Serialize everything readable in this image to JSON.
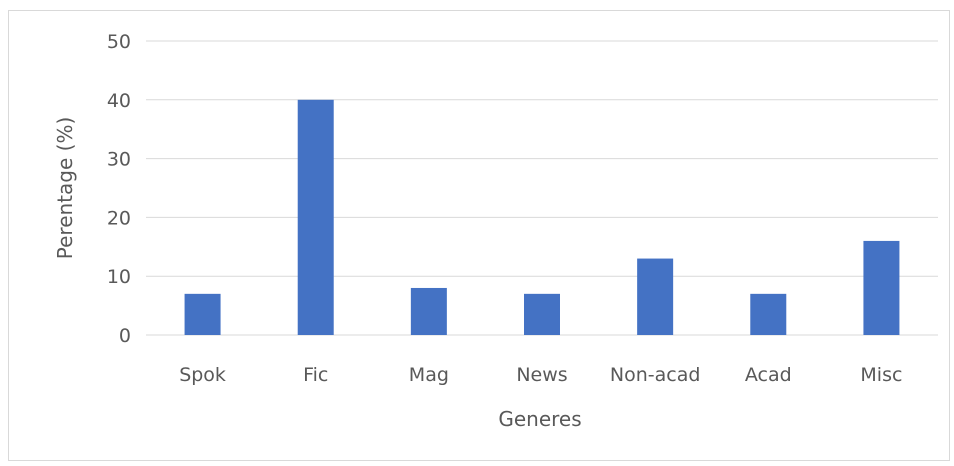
{
  "chart_data": {
    "type": "bar",
    "title": "",
    "xlabel": "Generes",
    "ylabel": "Perentage  (%)",
    "categories": [
      "Spok",
      "Fic",
      "Mag",
      "News",
      "Non-acad",
      "Acad",
      "Misc"
    ],
    "values": [
      7,
      40,
      8,
      7,
      13,
      7,
      16
    ],
    "ylim": [
      0,
      50
    ],
    "yticks": [
      0,
      10,
      20,
      30,
      40,
      50
    ],
    "grid": true,
    "legend": "none",
    "colors": {
      "bar": "#4472c4",
      "grid": "#d9d9d9",
      "text": "#595959"
    }
  }
}
